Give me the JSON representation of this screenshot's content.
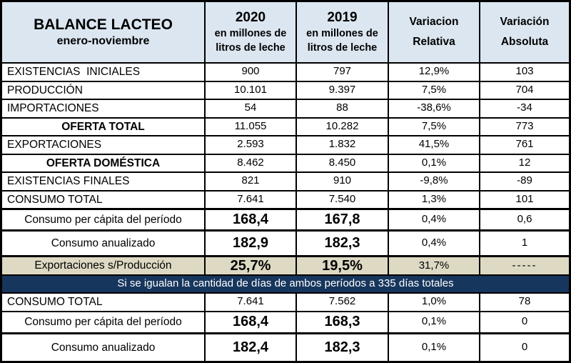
{
  "table": {
    "header": {
      "title_line1": "BALANCE LACTEO",
      "title_line2": "enero-noviembre",
      "col_2020": {
        "year": "2020",
        "unit_line1": "en millones de",
        "unit_line2": "litros de leche"
      },
      "col_2019": {
        "year": "2019",
        "unit_line1": "en millones de",
        "unit_line2": "litros de leche"
      },
      "col_rel": {
        "line1": "Variacion",
        "line2": "Relativa"
      },
      "col_abs": {
        "line1": "Variación",
        "line2": "Absoluta"
      }
    },
    "rows": [
      {
        "style": "normal",
        "label": "EXISTENCIAS  INICIALES",
        "y2020": "900",
        "y2019": "797",
        "rel": "12,9%",
        "abs": "103"
      },
      {
        "style": "normal",
        "label": "PRODUCCIÓN",
        "y2020": "10.101",
        "y2019": "9.397",
        "rel": "7,5%",
        "abs": "704"
      },
      {
        "style": "normal",
        "label": "IMPORTACIONES",
        "y2020": "54",
        "y2019": "88",
        "rel": "-38,6%",
        "abs": "-34"
      },
      {
        "style": "subtotal",
        "label": "OFERTA TOTAL",
        "y2020": "11.055",
        "y2019": "10.282",
        "rel": "7,5%",
        "abs": "773"
      },
      {
        "style": "normal",
        "label": "EXPORTACIONES",
        "y2020": "2.593",
        "y2019": "1.832",
        "rel": "41,5%",
        "abs": "761"
      },
      {
        "style": "subtotal",
        "label": "OFERTA DOMÉSTICA",
        "y2020": "8.462",
        "y2019": "8.450",
        "rel": "0,1%",
        "abs": "12"
      },
      {
        "style": "normal",
        "label": "EXISTENCIAS FINALES",
        "y2020": "821",
        "y2019": "910",
        "rel": "-9,8%",
        "abs": "-89"
      },
      {
        "style": "normal",
        "label": "CONSUMO TOTAL",
        "y2020": "7.641",
        "y2019": "7.540",
        "rel": "1,3%",
        "abs": "101"
      },
      {
        "style": "big",
        "thick_top": true,
        "label": "Consumo per cápita del período",
        "y2020": "168,4",
        "y2019": "167,8",
        "rel": "0,4%",
        "abs": "0,6"
      },
      {
        "style": "big",
        "thick_top": true,
        "tall": true,
        "label": "Consumo anualizado",
        "y2020": "182,9",
        "y2019": "182,3",
        "rel": "0,4%",
        "abs": "1"
      },
      {
        "style": "tan",
        "thick_top": true,
        "label": "Exportaciones s/Producción",
        "y2020": "25,7%",
        "y2019": "19,5%",
        "rel": "31,7%",
        "abs": "-----"
      },
      {
        "style": "band",
        "label": "Si se igualan la cantidad de días de ambos períodos a 335 días totales"
      },
      {
        "style": "normal",
        "label": "CONSUMO TOTAL",
        "y2020": "7.641",
        "y2019": "7.562",
        "rel": "1,0%",
        "abs": "78"
      },
      {
        "style": "big",
        "label": "Consumo per cápita del período",
        "y2020": "168,4",
        "y2019": "168,3",
        "rel": "0,1%",
        "abs": "0"
      },
      {
        "style": "big",
        "thick_top": true,
        "tall": true,
        "label": "Consumo anualizado",
        "y2020": "182,4",
        "y2019": "182,3",
        "rel": "0,1%",
        "abs": "0"
      }
    ]
  },
  "colors": {
    "header_bg": "#dce6f1",
    "tan_bg": "#ddd9c3",
    "band_bg": "#17365d",
    "band_text": "#ffffff",
    "border": "#000000",
    "text": "#000000",
    "page_bg": "#ffffff"
  }
}
